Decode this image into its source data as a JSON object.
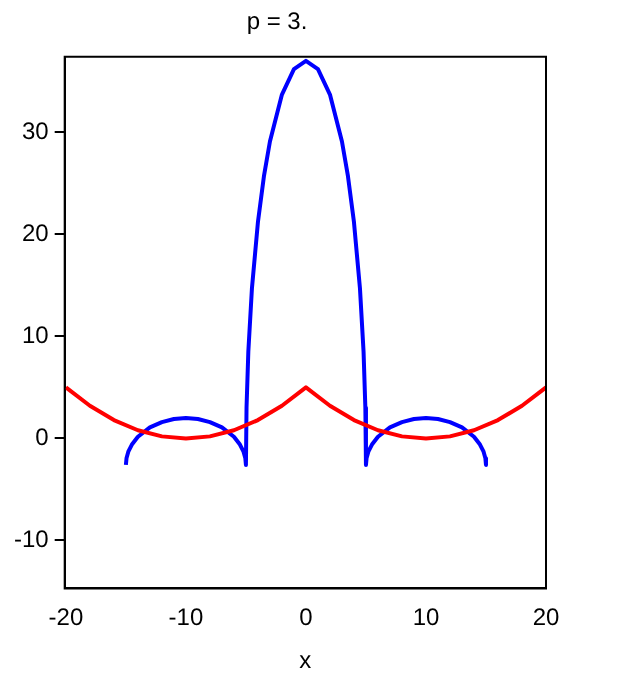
{
  "chart_data": {
    "type": "line",
    "title": "p = 3.",
    "xlabel": "x",
    "xlim": [
      -20.1,
      20
    ],
    "xticks": [
      -20,
      -10,
      0,
      10,
      20
    ],
    "ylim": [
      -14.7,
      37.4
    ],
    "yticks": [
      -10,
      0,
      10,
      20,
      30
    ],
    "grid": false,
    "legend": false,
    "marker": "none",
    "line_style": "solid",
    "series": [
      {
        "color": "#ff0000",
        "x": [
          -20,
          -18,
          -16,
          -14,
          -12,
          -10,
          -8,
          -6,
          -4,
          -2,
          0,
          2,
          4,
          6,
          8,
          10,
          12,
          14,
          16,
          18,
          20
        ],
        "values": [
          5,
          3.2,
          1.8,
          0.8,
          0.2,
          0,
          0.2,
          0.8,
          1.8,
          3.2,
          5,
          3.2,
          1.8,
          0.8,
          0.2,
          0,
          0.2,
          0.8,
          1.8,
          3.2,
          5
        ]
      },
      {
        "color": "#0000ff",
        "x": [
          -15,
          -14.95,
          -14.8,
          -14.5,
          -14,
          -13,
          -12,
          -11,
          -10,
          -9,
          -8,
          -7,
          -6,
          -5.5,
          -5.2,
          -5.05,
          -5,
          -4.95,
          -4.8,
          -4.5,
          -4,
          -3.5,
          -3,
          -2,
          -1,
          0,
          1,
          2,
          3,
          3.5,
          4,
          4.5,
          4.8,
          4.95,
          5,
          5.05,
          5.2,
          5.5,
          6,
          7,
          8,
          9,
          10,
          11,
          12,
          13,
          14,
          14.5,
          14.8,
          14.95,
          15
        ],
        "values": [
          -2.6,
          -1.95,
          -1.3,
          -0.6,
          0.16,
          1.08,
          1.6,
          1.9,
          2,
          1.9,
          1.6,
          1.08,
          0.16,
          -0.6,
          -1.3,
          -1.95,
          -2.6,
          3,
          8.5,
          14.7,
          21.2,
          25.7,
          29.1,
          33.7,
          36.2,
          37,
          36.2,
          33.7,
          29.1,
          25.7,
          21.2,
          14.7,
          8.5,
          3,
          -2.6,
          -1.95,
          -1.3,
          -0.6,
          0.16,
          1.08,
          1.6,
          1.9,
          2,
          1.9,
          1.6,
          1.08,
          0.16,
          -0.6,
          -1.3,
          -1.95,
          -2.6
        ]
      }
    ]
  }
}
